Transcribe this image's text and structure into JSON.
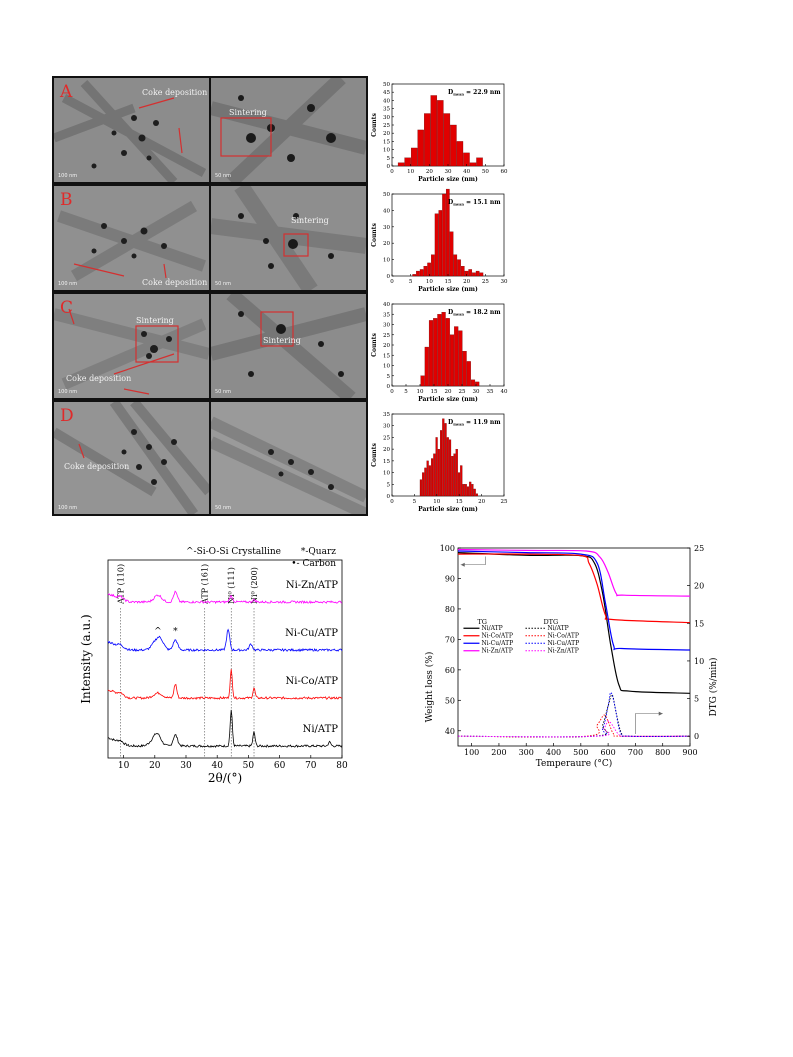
{
  "tem_panels": [
    {
      "letter": "A",
      "left_ann": "Coke deposition",
      "right_ann": "Sintering",
      "left_scale": "100 nm",
      "right_scale": "50 nm"
    },
    {
      "letter": "B",
      "left_ann": "Coke deposition",
      "right_ann": "Sintering",
      "left_scale": "100 nm",
      "right_scale": "50 nm"
    },
    {
      "letter": "C",
      "left_ann": "Coke deposition",
      "left_ann2": "Sintering",
      "right_ann": "Sintering",
      "left_scale": "100 nm",
      "right_scale": "50 nm"
    },
    {
      "letter": "D",
      "left_ann": "Coke deposition",
      "right_ann": "",
      "left_scale": "100 nm",
      "right_scale": "50 nm"
    }
  ],
  "chart_data": [
    {
      "type": "bar",
      "xlabel": "Particle size (nm)",
      "ylabel": "Counts",
      "annotation": "D",
      "annotation_sub": "mean",
      "annotation_value": "= 22.9 nm",
      "xlim": [
        0,
        60
      ],
      "ylim": [
        0,
        50
      ],
      "xticks": [
        0,
        10,
        20,
        30,
        40,
        50,
        60
      ],
      "yticks": [
        0,
        5,
        10,
        15,
        20,
        25,
        30,
        35,
        40,
        45,
        50
      ],
      "bar_width": 3.5,
      "x": [
        5,
        8.5,
        12,
        15.5,
        19,
        22.5,
        26,
        29.5,
        33,
        36.5,
        40,
        43.5,
        47,
        50.5
      ],
      "values": [
        2,
        5,
        11,
        22,
        32,
        43,
        40,
        32,
        25,
        15,
        8,
        2,
        5,
        0
      ],
      "color": "#e00000"
    },
    {
      "type": "bar",
      "xlabel": "Particle size (nm)",
      "ylabel": "Counts",
      "annotation": "D",
      "annotation_sub": "mean",
      "annotation_value": "= 15.1 nm",
      "xlim": [
        0,
        30
      ],
      "ylim": [
        0,
        50
      ],
      "xticks": [
        0,
        5,
        10,
        15,
        20,
        25,
        30
      ],
      "yticks": [
        0,
        10,
        20,
        30,
        40,
        50
      ],
      "bar_width": 1,
      "x": [
        6,
        7,
        8,
        9,
        10,
        11,
        12,
        13,
        14,
        15,
        16,
        17,
        18,
        19,
        20,
        21,
        22,
        23,
        24,
        25
      ],
      "values": [
        1,
        3,
        4,
        6,
        8,
        13,
        38,
        40,
        50,
        53,
        27,
        13,
        10,
        6,
        3,
        4,
        2,
        3,
        2,
        0
      ],
      "color": "#e00000"
    },
    {
      "type": "bar",
      "xlabel": "Particle size (nm)",
      "ylabel": "Counts",
      "annotation": "D",
      "annotation_sub": "mean",
      "annotation_value": "= 18.2 nm",
      "xlim": [
        0,
        40
      ],
      "ylim": [
        0,
        40
      ],
      "xticks": [
        0,
        5,
        10,
        15,
        20,
        25,
        30,
        35,
        40
      ],
      "yticks": [
        0,
        5,
        10,
        15,
        20,
        25,
        30,
        35,
        40
      ],
      "bar_width": 1.5,
      "x": [
        11,
        12.5,
        14,
        15.5,
        17,
        18.5,
        20,
        21.5,
        23,
        24.5,
        26,
        27.5,
        29,
        30.5,
        32,
        33.5
      ],
      "values": [
        5,
        19,
        32,
        33,
        35,
        36,
        33,
        25,
        29,
        27,
        17,
        12,
        3,
        2,
        0,
        0
      ],
      "color": "#e00000"
    },
    {
      "type": "bar",
      "xlabel": "Particle size (nm)",
      "ylabel": "Counts",
      "annotation": "D",
      "annotation_sub": "mean",
      "annotation_value": "= 11.9 nm",
      "xlim": [
        0,
        25
      ],
      "ylim": [
        0,
        35
      ],
      "xticks": [
        0,
        5,
        10,
        15,
        20,
        25
      ],
      "yticks": [
        0,
        5,
        10,
        15,
        20,
        25,
        30,
        35
      ],
      "bar_width": 0.5,
      "x": [
        6.5,
        7,
        7.5,
        8,
        8.5,
        9,
        9.5,
        10,
        10.5,
        11,
        11.5,
        12,
        12.5,
        13,
        13.5,
        14,
        14.5,
        15,
        15.5,
        16,
        16.5,
        17,
        17.5,
        18,
        18.5,
        19
      ],
      "values": [
        7,
        10,
        12,
        15,
        13,
        16,
        18,
        25,
        20,
        28,
        33,
        31,
        25,
        24,
        17,
        18,
        20,
        10,
        13,
        5,
        5,
        4,
        6,
        5,
        3,
        1
      ],
      "color": "#e00000"
    },
    {
      "type": "line",
      "xlabel": "2θ/(°)",
      "ylabel": "Intensity (a.u.)",
      "xlim": [
        5,
        80
      ],
      "xticks": [
        10,
        20,
        30,
        40,
        50,
        60,
        70,
        80
      ],
      "legend_lines": [
        "^-Si-O-Si Crystalline",
        "*-Quarz",
        "•- Carbon"
      ],
      "ref_lines": [
        {
          "x": 9,
          "label": "ATP (110)"
        },
        {
          "x": 36,
          "label": "ATP (161)"
        },
        {
          "x": 44.5,
          "label": "Ni⁰ (111)"
        },
        {
          "x": 51.8,
          "label": "Ni⁰ (200)"
        }
      ],
      "markers": [
        {
          "x": 21,
          "symbol": "^"
        },
        {
          "x": 26.6,
          "symbol": "*"
        }
      ],
      "series": [
        {
          "name": "Ni/ATP",
          "color": "#000000",
          "offset": 0
        },
        {
          "name": "Ni-Co/ATP",
          "color": "#ff0000",
          "offset": 1
        },
        {
          "name": "Ni-Cu/ATP",
          "color": "#0000ff",
          "offset": 2
        },
        {
          "name": "Ni-Zn/ATP",
          "color": "#ff00ff",
          "offset": 3
        }
      ]
    },
    {
      "type": "line",
      "xlabel": "Temperaure (°C)",
      "ylabel": "Weight loss (%)",
      "ylabel_right": "DTG (%/min)",
      "xlim": [
        50,
        900
      ],
      "ylim": [
        35,
        100
      ],
      "ylim_right": [
        -1.3,
        25
      ],
      "xticks": [
        100,
        200,
        300,
        400,
        500,
        600,
        700,
        800,
        900
      ],
      "yticks": [
        40,
        50,
        60,
        70,
        80,
        90,
        100
      ],
      "yticks_right": [
        0,
        5,
        10,
        15,
        20,
        25
      ],
      "legend_header_tg": "TG",
      "legend_header_dtg": "DTG",
      "series": [
        {
          "name": "Ni/ATP",
          "color": "#000000",
          "tg": [
            [
              50,
              98.5
            ],
            [
              300,
              97.6
            ],
            [
              500,
              97.5
            ],
            [
              550,
              95
            ],
            [
              580,
              85
            ],
            [
              610,
              68
            ],
            [
              640,
              55
            ],
            [
              680,
              53
            ],
            [
              900,
              52.3
            ]
          ],
          "dtg": [
            [
              50,
              0
            ],
            [
              550,
              0
            ],
            [
              580,
              1.5
            ],
            [
              600,
              4
            ],
            [
              615,
              5.5
            ],
            [
              630,
              3
            ],
            [
              650,
              0.3
            ],
            [
              680,
              0
            ],
            [
              900,
              0
            ]
          ]
        },
        {
          "name": "Ni-Co/ATP",
          "color": "#ff0000",
          "tg": [
            [
              50,
              98
            ],
            [
              300,
              98
            ],
            [
              500,
              97.5
            ],
            [
              530,
              95
            ],
            [
              560,
              88
            ],
            [
              590,
              78
            ],
            [
              620,
              76.5
            ],
            [
              900,
              75.5
            ]
          ],
          "dtg": [
            [
              50,
              0
            ],
            [
              520,
              0
            ],
            [
              560,
              1.5
            ],
            [
              585,
              2.8
            ],
            [
              600,
              2
            ],
            [
              620,
              0.3
            ],
            [
              650,
              0
            ],
            [
              900,
              0
            ]
          ]
        },
        {
          "name": "Ni-Cu/ATP",
          "color": "#0000ff",
          "tg": [
            [
              50,
              99
            ],
            [
              300,
              98.5
            ],
            [
              500,
              98
            ],
            [
              560,
              95
            ],
            [
              590,
              82
            ],
            [
              620,
              68
            ],
            [
              650,
              67
            ],
            [
              900,
              66.5
            ]
          ],
          "dtg": [
            [
              50,
              0
            ],
            [
              550,
              0
            ],
            [
              580,
              1
            ],
            [
              600,
              4
            ],
            [
              610,
              5.8
            ],
            [
              625,
              4
            ],
            [
              645,
              0.5
            ],
            [
              680,
              0
            ],
            [
              900,
              0
            ]
          ]
        },
        {
          "name": "Ni-Zn/ATP",
          "color": "#ff00ff",
          "tg": [
            [
              50,
              99.5
            ],
            [
              300,
              99.2
            ],
            [
              520,
              99
            ],
            [
              570,
              97
            ],
            [
              600,
              92
            ],
            [
              630,
              85
            ],
            [
              660,
              84.5
            ],
            [
              900,
              84.2
            ]
          ],
          "dtg": [
            [
              50,
              0
            ],
            [
              560,
              0
            ],
            [
              585,
              1
            ],
            [
              600,
              2
            ],
            [
              615,
              1.5
            ],
            [
              640,
              0.2
            ],
            [
              670,
              0
            ],
            [
              900,
              0
            ]
          ]
        }
      ]
    }
  ]
}
